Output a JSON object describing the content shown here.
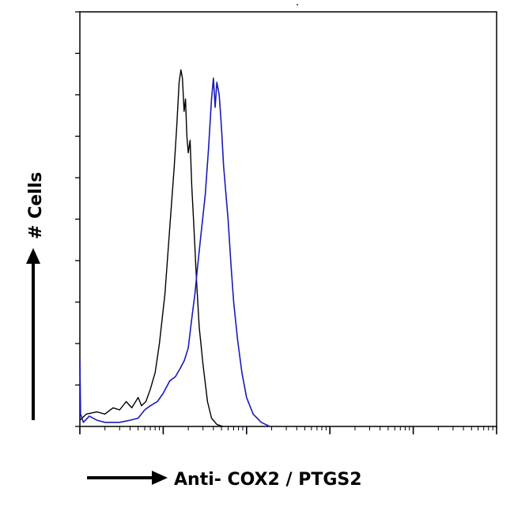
{
  "chart_data": {
    "type": "line",
    "title": "",
    "xlabel": "Anti- COX2 / PTGS2",
    "ylabel": "# Cells",
    "xscale": "log",
    "xlim": [
      1,
      100000
    ],
    "ylim": [
      0,
      10
    ],
    "grid": false,
    "legend": "none",
    "tick_labels_shown": false,
    "series": [
      {
        "color": "#000000",
        "points": [
          [
            1,
            0.15
          ],
          [
            1.2,
            0.3
          ],
          [
            1.6,
            0.35
          ],
          [
            2,
            0.3
          ],
          [
            2.5,
            0.45
          ],
          [
            3,
            0.4
          ],
          [
            3.6,
            0.6
          ],
          [
            4.2,
            0.45
          ],
          [
            5,
            0.7
          ],
          [
            5.5,
            0.5
          ],
          [
            6.2,
            0.6
          ],
          [
            7,
            0.9
          ],
          [
            8,
            1.3
          ],
          [
            9,
            2.0
          ],
          [
            10.5,
            3.2
          ],
          [
            12,
            4.8
          ],
          [
            13.5,
            6.2
          ],
          [
            14.5,
            7.2
          ],
          [
            15.5,
            8.3
          ],
          [
            16.3,
            8.6
          ],
          [
            17,
            8.4
          ],
          [
            17.8,
            7.6
          ],
          [
            18.5,
            7.9
          ],
          [
            19.2,
            7.0
          ],
          [
            20,
            6.6
          ],
          [
            21,
            6.9
          ],
          [
            22,
            5.8
          ],
          [
            23.5,
            4.7
          ],
          [
            25,
            3.6
          ],
          [
            27,
            2.4
          ],
          [
            30,
            1.5
          ],
          [
            34,
            0.6
          ],
          [
            38,
            0.2
          ],
          [
            44,
            0.05
          ],
          [
            52,
            0.0
          ]
        ]
      },
      {
        "color": "#1a1ab8",
        "points": [
          [
            1,
            1.6
          ],
          [
            1.02,
            0.3
          ],
          [
            1.1,
            0.1
          ],
          [
            1.3,
            0.25
          ],
          [
            1.6,
            0.15
          ],
          [
            2,
            0.1
          ],
          [
            3,
            0.1
          ],
          [
            4,
            0.15
          ],
          [
            5,
            0.2
          ],
          [
            6,
            0.4
          ],
          [
            7,
            0.5
          ],
          [
            8.5,
            0.6
          ],
          [
            10,
            0.8
          ],
          [
            12,
            1.1
          ],
          [
            14,
            1.2
          ],
          [
            16,
            1.4
          ],
          [
            18,
            1.6
          ],
          [
            20,
            1.9
          ],
          [
            22,
            2.6
          ],
          [
            24,
            3.2
          ],
          [
            26,
            3.9
          ],
          [
            29,
            4.8
          ],
          [
            32,
            5.6
          ],
          [
            35,
            6.7
          ],
          [
            38,
            7.9
          ],
          [
            40,
            8.4
          ],
          [
            42,
            7.7
          ],
          [
            44,
            8.3
          ],
          [
            47,
            8.0
          ],
          [
            50,
            7.2
          ],
          [
            53,
            6.3
          ],
          [
            56,
            5.7
          ],
          [
            60,
            5.0
          ],
          [
            65,
            3.9
          ],
          [
            70,
            3.0
          ],
          [
            78,
            2.1
          ],
          [
            88,
            1.3
          ],
          [
            100,
            0.7
          ],
          [
            120,
            0.3
          ],
          [
            150,
            0.1
          ],
          [
            190,
            0.0
          ]
        ]
      }
    ]
  }
}
